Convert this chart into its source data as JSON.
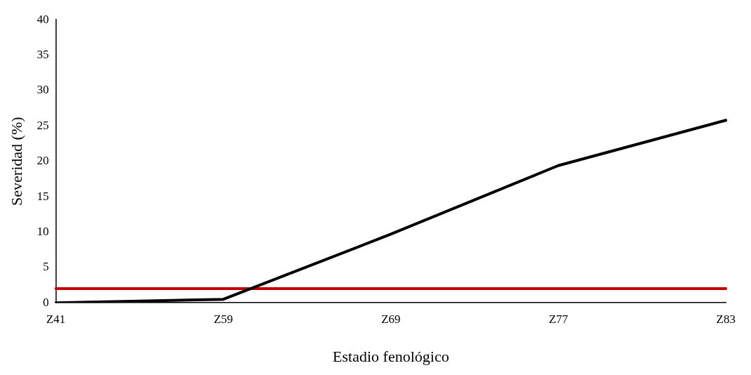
{
  "chart_data": {
    "type": "line",
    "xlabel": "Estadio fenológico",
    "ylabel": "Severidad (%)",
    "categories": [
      "Z41",
      "Z59",
      "Z69",
      "Z77",
      "Z83"
    ],
    "series": [
      {
        "color": "#000000",
        "values": [
          0,
          0.5,
          9.7,
          19.4,
          25.8
        ]
      },
      {
        "color": "#c00000",
        "values": [
          2,
          2,
          2,
          2,
          2
        ]
      }
    ],
    "ylim": [
      0,
      40
    ],
    "yticks": [
      0,
      5,
      10,
      15,
      20,
      25,
      30,
      35,
      40
    ],
    "grid": false,
    "legend": false,
    "marker": "none",
    "line_style": "solid"
  }
}
